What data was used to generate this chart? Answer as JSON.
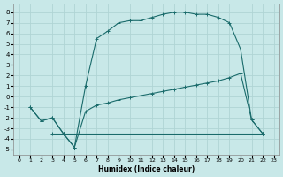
{
  "xlabel": "Humidex (Indice chaleur)",
  "background_color": "#c8e8e8",
  "grid_color": "#b0d4d4",
  "line_color": "#1a6b6b",
  "xlim": [
    -0.5,
    23.5
  ],
  "ylim": [
    -5.5,
    8.8
  ],
  "xticks": [
    0,
    1,
    2,
    3,
    4,
    5,
    6,
    7,
    8,
    9,
    10,
    11,
    12,
    13,
    14,
    15,
    16,
    17,
    18,
    19,
    20,
    21,
    22,
    23
  ],
  "yticks": [
    -5,
    -4,
    -3,
    -2,
    -1,
    0,
    1,
    2,
    3,
    4,
    5,
    6,
    7,
    8
  ],
  "line1_x": [
    1,
    2,
    3,
    4,
    5,
    6,
    7,
    8,
    9,
    10,
    11,
    12,
    13,
    14,
    15,
    16,
    17,
    18,
    19,
    20,
    21,
    22
  ],
  "line1_y": [
    -1,
    -2.3,
    -2.0,
    -3.5,
    -4.8,
    1.0,
    5.5,
    6.2,
    7.0,
    7.2,
    7.2,
    7.5,
    7.8,
    8.0,
    8.0,
    7.8,
    7.8,
    7.5,
    7.0,
    4.5,
    -2.2,
    -3.5
  ],
  "line2_x": [
    1,
    2,
    3,
    4,
    5,
    6,
    7,
    8,
    9,
    10,
    11,
    12,
    13,
    14,
    15,
    16,
    17,
    18,
    19,
    20,
    21,
    22
  ],
  "line2_y": [
    -1,
    -2.3,
    -2.0,
    -3.5,
    -4.8,
    -1.4,
    -0.8,
    -0.6,
    -0.3,
    -0.1,
    0.1,
    0.3,
    0.5,
    0.7,
    0.9,
    1.1,
    1.3,
    1.5,
    1.8,
    2.2,
    -2.2,
    -3.5
  ],
  "line3_x": [
    3,
    4,
    22
  ],
  "line3_y": [
    -3.5,
    -3.5,
    -3.5
  ],
  "figsize": [
    3.2,
    2.0
  ],
  "dpi": 100
}
